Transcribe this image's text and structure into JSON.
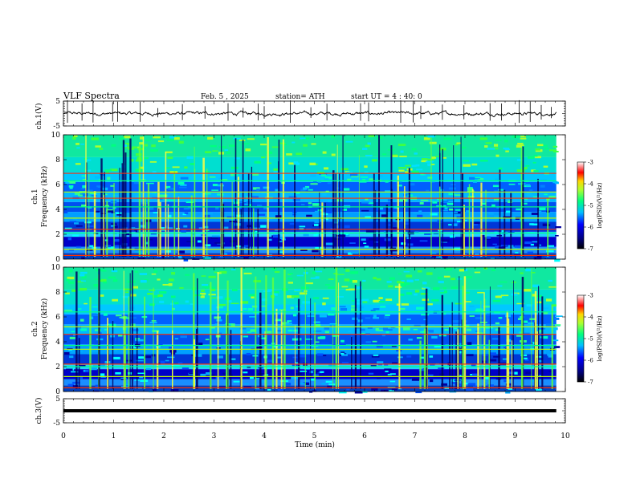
{
  "header": {
    "title": "VLF Spectra",
    "date": "Feb. 5 , 2025",
    "station": "station= ATH",
    "start": "start UT = 4 : 40: 0"
  },
  "chart_data": [
    {
      "type": "line",
      "name": "ch1-waveform",
      "ylabel": "ch.1(V)",
      "ylim": [
        -5,
        5
      ],
      "yticks": [
        "5",
        "-5"
      ],
      "xlim": [
        0,
        10
      ],
      "y_mean": 0,
      "spike_times": [
        0.08,
        0.37,
        0.59,
        0.98,
        1.08,
        1.53,
        1.88,
        2.37,
        2.82,
        3.28,
        3.58,
        3.88,
        4.0,
        4.52,
        4.93,
        5.25,
        5.92,
        6.08,
        6.72,
        6.97,
        7.12,
        7.55,
        7.98,
        8.5,
        8.73,
        9.08,
        9.3,
        9.52,
        9.72
      ]
    },
    {
      "type": "heatmap",
      "name": "ch1-spectrogram",
      "channel_label": "ch.1",
      "ylabel": "Frequency (kHz)",
      "ylim": [
        0,
        10
      ],
      "yticks": [
        "0",
        "2",
        "4",
        "6",
        "8",
        "10"
      ],
      "xlim": [
        0,
        10
      ],
      "bands_khz": [
        0.3,
        0.8,
        2.1,
        2.4,
        3.3,
        4.2,
        4.9,
        5.4,
        6.3,
        6.9
      ],
      "colorbar": {
        "label": "log(PSD)(V²/Hz)",
        "ticks": [
          "-3",
          "-4",
          "-5",
          "-6",
          "-7"
        ],
        "range": [
          -7,
          -3
        ]
      }
    },
    {
      "type": "heatmap",
      "name": "ch2-spectrogram",
      "channel_label": "ch.2",
      "ylabel": "Frequency (kHz)",
      "ylim": [
        0,
        10
      ],
      "yticks": [
        "0",
        "2",
        "4",
        "6",
        "8",
        "10"
      ],
      "xlim": [
        0,
        10
      ],
      "bands_khz": [
        0.3,
        1.2,
        2.0,
        2.2,
        3.4,
        3.7,
        4.6,
        5.2,
        6.4
      ],
      "colorbar": {
        "label": "log(PSD)(V²/Hz)",
        "ticks": [
          "-3",
          "-4",
          "-5",
          "-6",
          "-7"
        ],
        "range": [
          -7,
          -3
        ]
      }
    },
    {
      "type": "line",
      "name": "ch3-waveform",
      "ylabel": "ch.3(V)",
      "ylim": [
        -5,
        5
      ],
      "yticks": [
        "5",
        "-5"
      ],
      "xlim": [
        0,
        10
      ],
      "y_mean": 0,
      "xlabel": "Time (min)",
      "xticks": [
        "0",
        "1",
        "2",
        "3",
        "4",
        "5",
        "6",
        "7",
        "8",
        "9",
        "10"
      ]
    }
  ],
  "colors": {
    "spec_low": "#00008b",
    "spec_mid": "#00c8ff",
    "spec_high": "#00ff40",
    "spec_peak": "#ff0000",
    "trace": "#000000"
  }
}
